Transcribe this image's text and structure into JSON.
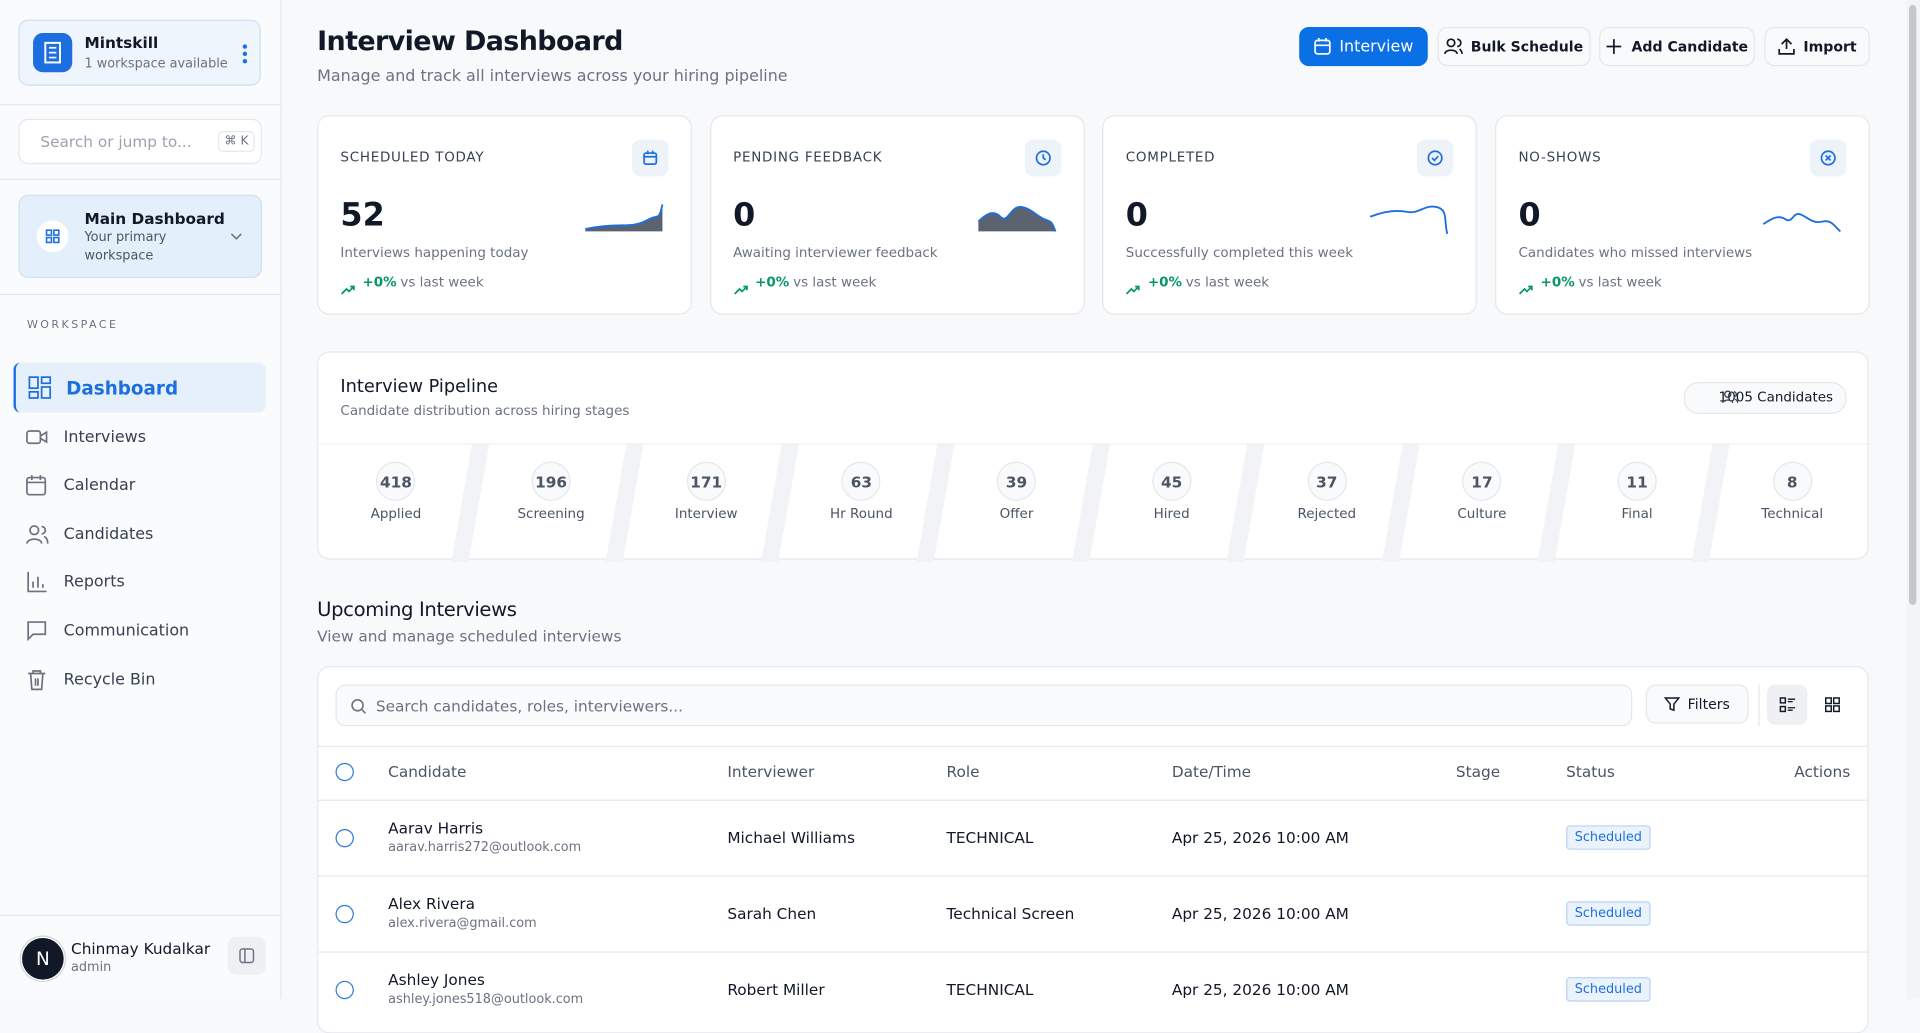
{
  "sidebar": {
    "workspace": {
      "name": "Mintskill",
      "subtitle": "1 workspace available"
    },
    "search": {
      "placeholder": "Search or jump to...",
      "shortcut": "⌘ K"
    },
    "dashboard_switch": {
      "title": "Main Dashboard",
      "subtitle": "Your primary workspace"
    },
    "nav": {
      "section": "WORKSPACE",
      "items": [
        "Dashboard",
        "Interviews",
        "Calendar",
        "Candidates",
        "Reports",
        "Communication",
        "Recycle Bin"
      ]
    },
    "user": {
      "initial": "N",
      "name": "Chinmay Kudalkar",
      "role": "admin"
    }
  },
  "header": {
    "title": "Interview Dashboard",
    "subtitle": "Manage and track all interviews across your hiring pipeline",
    "buttons": [
      "Interview",
      "Bulk Schedule",
      "Add Candidate",
      "Import"
    ]
  },
  "stats": [
    {
      "label": "SCHEDULED TODAY",
      "value": "52",
      "caption": "Interviews happening today",
      "change": "+0%",
      "compare": "vs last week"
    },
    {
      "label": "PENDING FEEDBACK",
      "value": "0",
      "caption": "Awaiting interviewer feedback",
      "change": "+0%",
      "compare": "vs last week"
    },
    {
      "label": "COMPLETED",
      "value": "0",
      "caption": "Successfully completed this week",
      "change": "+0%",
      "compare": "vs last week"
    },
    {
      "label": "NO-SHOWS",
      "value": "0",
      "caption": "Candidates who missed interviews",
      "change": "+0%",
      "compare": "vs last week"
    }
  ],
  "pipeline": {
    "title": "Interview Pipeline",
    "subtitle": "Candidate distribution across hiring stages",
    "badge": "1005 Candidates",
    "stages": [
      {
        "count": "418",
        "label": "Applied"
      },
      {
        "count": "196",
        "label": "Screening"
      },
      {
        "count": "171",
        "label": "Interview"
      },
      {
        "count": "63",
        "label": "Hr Round"
      },
      {
        "count": "39",
        "label": "Offer"
      },
      {
        "count": "45",
        "label": "Hired"
      },
      {
        "count": "37",
        "label": "Rejected"
      },
      {
        "count": "17",
        "label": "Culture"
      },
      {
        "count": "11",
        "label": "Final"
      },
      {
        "count": "8",
        "label": "Technical"
      }
    ]
  },
  "upcoming": {
    "title": "Upcoming Interviews",
    "subtitle": "View and manage scheduled interviews",
    "search_placeholder": "Search candidates, roles, interviewers...",
    "filters": "Filters"
  },
  "table": {
    "columns": [
      "Candidate",
      "Interviewer",
      "Role",
      "Date/Time",
      "Stage",
      "Status",
      "Actions"
    ],
    "rows": [
      {
        "name": "Aarav Harris",
        "email": "aarav.harris272@outlook.com",
        "interviewer": "Michael Williams",
        "role": "TECHNICAL",
        "datetime": "Apr 25, 2026 10:00 AM",
        "status": "Scheduled"
      },
      {
        "name": "Alex Rivera",
        "email": "alex.rivera@gmail.com",
        "interviewer": "Sarah Chen",
        "role": "Technical Screen",
        "datetime": "Apr 25, 2026 10:00 AM",
        "status": "Scheduled"
      },
      {
        "name": "Ashley Jones",
        "email": "ashley.jones518@outlook.com",
        "interviewer": "Robert Miller",
        "role": "TECHNICAL",
        "datetime": "Apr 25, 2026 10:00 AM",
        "status": "Scheduled"
      }
    ]
  }
}
